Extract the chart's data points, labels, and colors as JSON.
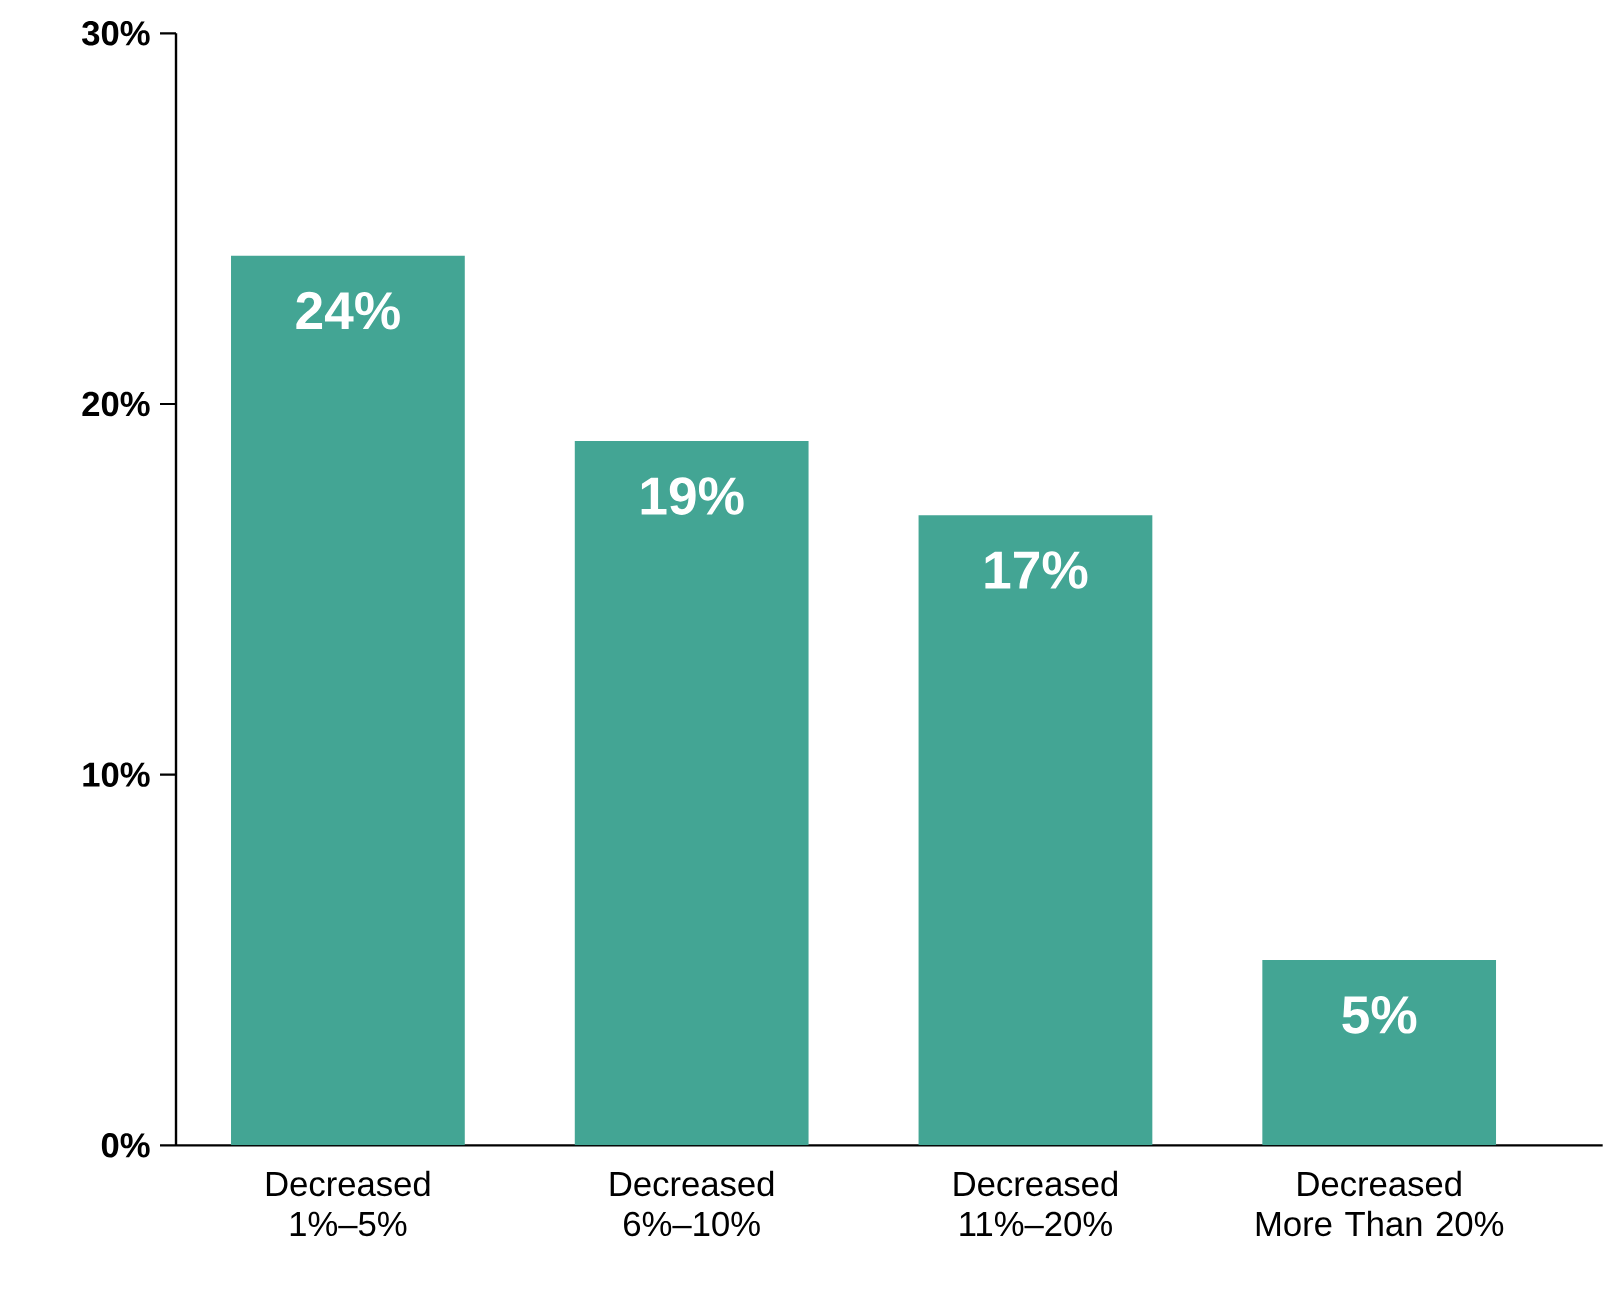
{
  "chart_data": {
    "type": "bar",
    "categories": [
      "Decreased 1%–5%",
      "Decreased 6%–10%",
      "Decreased 11%–20%",
      "Decreased More Than 20%"
    ],
    "values": [
      24,
      19,
      17,
      5
    ],
    "value_labels": [
      "24%",
      "19%",
      "17%",
      "5%"
    ],
    "color": "#43a594",
    "ylim": [
      0,
      30
    ],
    "yticks": [
      {
        "value": 0,
        "label": "0%"
      },
      {
        "value": 10,
        "label": "10%"
      },
      {
        "value": 20,
        "label": "20%"
      },
      {
        "value": 30,
        "label": "30%"
      }
    ]
  }
}
